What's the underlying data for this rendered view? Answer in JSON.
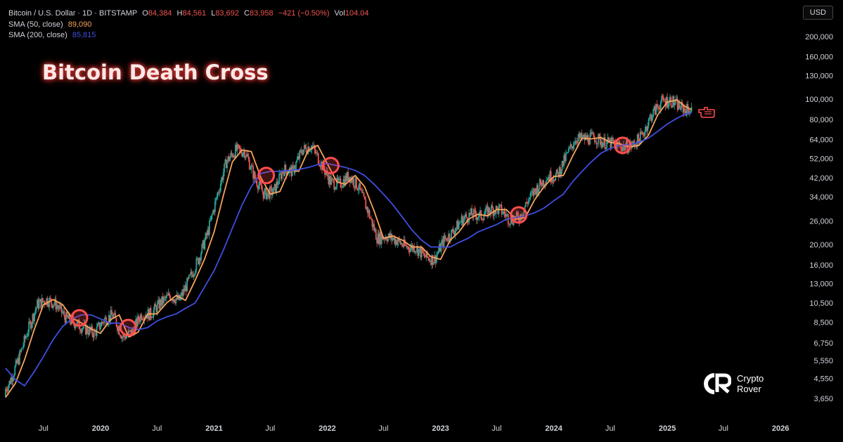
{
  "header": {
    "symbol": "Bitcoin / U.S. Dollar · 1D · BITSTAMP",
    "o_label": "O",
    "o_value": "84,384",
    "h_label": "H",
    "h_value": "84,561",
    "l_label": "L",
    "l_value": "83,692",
    "c_label": "C",
    "c_value": "83,958",
    "change": "−421 (−0.50%)",
    "vol_label": "Vol",
    "vol_value": "104.04",
    "sma50_label": "SMA (50, close)",
    "sma50_value": "89,090",
    "sma200_label": "SMA (200, close)",
    "sma200_value": "85,815"
  },
  "title": "Bitcoin Death Cross",
  "currency_button": "USD",
  "brand": {
    "line1": "Crypto",
    "line2": "Rover"
  },
  "colors": {
    "sma50": "#f7a35c",
    "sma200": "#3f4ee0",
    "candle_up": "#26a69a",
    "candle_down": "#ef5350",
    "circle": "#ff4d4d"
  },
  "chart_data": {
    "type": "line",
    "y_scale": "log",
    "ylim": [
      3300,
      230000
    ],
    "x_range": [
      "2019-03-01",
      "2026-02-15"
    ],
    "y_ticks": [
      3650,
      4550,
      5550,
      6750,
      8500,
      10500,
      13000,
      16000,
      20000,
      26000,
      34000,
      42000,
      52000,
      64000,
      80000,
      100000,
      130000,
      160000,
      200000
    ],
    "y_tick_labels": [
      "3,650",
      "4,550",
      "5,550",
      "6,750",
      "8,500",
      "10,500",
      "13,000",
      "16,000",
      "20,000",
      "26,000",
      "34,000",
      "42,000",
      "52,000",
      "64,000",
      "80,000",
      "100,000",
      "130,000",
      "160,000",
      "200,000"
    ],
    "x_ticks": [
      {
        "label": "Jul",
        "date": "2019-07-01"
      },
      {
        "label": "2020",
        "date": "2020-01-01"
      },
      {
        "label": "Jul",
        "date": "2020-07-01"
      },
      {
        "label": "2021",
        "date": "2021-01-01"
      },
      {
        "label": "Jul",
        "date": "2021-07-01"
      },
      {
        "label": "2022",
        "date": "2022-01-01"
      },
      {
        "label": "Jul",
        "date": "2022-07-01"
      },
      {
        "label": "2023",
        "date": "2023-01-01"
      },
      {
        "label": "Jul",
        "date": "2023-07-01"
      },
      {
        "label": "2024",
        "date": "2024-01-01"
      },
      {
        "label": "Jul",
        "date": "2024-07-01"
      },
      {
        "label": "2025",
        "date": "2025-01-01"
      },
      {
        "label": "Jul",
        "date": "2025-07-01"
      },
      {
        "label": "2026",
        "date": "2026-01-01"
      }
    ],
    "series": [
      {
        "name": "SMA (50, close)",
        "points": [
          [
            "2019-03-01",
            3700
          ],
          [
            "2019-04-01",
            4300
          ],
          [
            "2019-05-01",
            5600
          ],
          [
            "2019-06-01",
            7800
          ],
          [
            "2019-07-01",
            10300
          ],
          [
            "2019-08-01",
            10900
          ],
          [
            "2019-09-01",
            10300
          ],
          [
            "2019-10-01",
            8900
          ],
          [
            "2019-11-01",
            8400
          ],
          [
            "2019-12-01",
            7900
          ],
          [
            "2020-01-01",
            7500
          ],
          [
            "2020-02-01",
            8700
          ],
          [
            "2020-03-01",
            9200
          ],
          [
            "2020-04-01",
            7200
          ],
          [
            "2020-05-01",
            7600
          ],
          [
            "2020-06-01",
            9300
          ],
          [
            "2020-07-01",
            9300
          ],
          [
            "2020-08-01",
            10500
          ],
          [
            "2020-09-01",
            11400
          ],
          [
            "2020-10-01",
            10800
          ],
          [
            "2020-11-01",
            13500
          ],
          [
            "2020-12-01",
            17000
          ],
          [
            "2021-01-01",
            23000
          ],
          [
            "2021-02-01",
            35000
          ],
          [
            "2021-03-01",
            50000
          ],
          [
            "2021-04-01",
            57000
          ],
          [
            "2021-05-01",
            56000
          ],
          [
            "2021-06-01",
            42000
          ],
          [
            "2021-07-01",
            35000
          ],
          [
            "2021-08-01",
            36000
          ],
          [
            "2021-09-01",
            46000
          ],
          [
            "2021-10-01",
            45000
          ],
          [
            "2021-11-01",
            57000
          ],
          [
            "2021-12-01",
            60000
          ],
          [
            "2022-01-01",
            49000
          ],
          [
            "2022-02-01",
            40000
          ],
          [
            "2022-03-01",
            39000
          ],
          [
            "2022-04-01",
            43000
          ],
          [
            "2022-05-01",
            38000
          ],
          [
            "2022-06-01",
            29000
          ],
          [
            "2022-07-01",
            21500
          ],
          [
            "2022-08-01",
            22000
          ],
          [
            "2022-09-01",
            21000
          ],
          [
            "2022-10-01",
            19500
          ],
          [
            "2022-11-01",
            19500
          ],
          [
            "2022-12-01",
            17500
          ],
          [
            "2023-01-01",
            17000
          ],
          [
            "2023-02-01",
            21000
          ],
          [
            "2023-03-01",
            23000
          ],
          [
            "2023-04-01",
            26500
          ],
          [
            "2023-05-01",
            28000
          ],
          [
            "2023-06-01",
            27500
          ],
          [
            "2023-07-01",
            29500
          ],
          [
            "2023-08-01",
            29500
          ],
          [
            "2023-09-01",
            26500
          ],
          [
            "2023-10-01",
            27000
          ],
          [
            "2023-11-01",
            33000
          ],
          [
            "2023-12-01",
            38000
          ],
          [
            "2024-01-01",
            42500
          ],
          [
            "2024-02-01",
            43000
          ],
          [
            "2024-03-01",
            53000
          ],
          [
            "2024-04-01",
            65000
          ],
          [
            "2024-05-01",
            64500
          ],
          [
            "2024-06-01",
            65500
          ],
          [
            "2024-07-01",
            62000
          ],
          [
            "2024-08-01",
            61000
          ],
          [
            "2024-09-01",
            59000
          ],
          [
            "2024-10-01",
            60000
          ],
          [
            "2024-11-01",
            67000
          ],
          [
            "2024-12-01",
            84000
          ],
          [
            "2025-01-01",
            97000
          ],
          [
            "2025-02-01",
            99000
          ],
          [
            "2025-03-01",
            92000
          ],
          [
            "2025-03-20",
            89090
          ]
        ]
      },
      {
        "name": "SMA (200, close)",
        "points": [
          [
            "2019-03-01",
            5100
          ],
          [
            "2019-04-01",
            4500
          ],
          [
            "2019-05-01",
            4200
          ],
          [
            "2019-06-01",
            4900
          ],
          [
            "2019-07-01",
            5800
          ],
          [
            "2019-08-01",
            7000
          ],
          [
            "2019-09-01",
            8100
          ],
          [
            "2019-10-01",
            8800
          ],
          [
            "2019-11-01",
            9200
          ],
          [
            "2019-12-01",
            9200
          ],
          [
            "2020-01-01",
            8800
          ],
          [
            "2020-02-01",
            8400
          ],
          [
            "2020-03-01",
            8400
          ],
          [
            "2020-04-01",
            8000
          ],
          [
            "2020-05-01",
            7800
          ],
          [
            "2020-06-01",
            8000
          ],
          [
            "2020-07-01",
            8600
          ],
          [
            "2020-08-01",
            9000
          ],
          [
            "2020-09-01",
            9300
          ],
          [
            "2020-10-01",
            9900
          ],
          [
            "2020-11-01",
            10500
          ],
          [
            "2020-12-01",
            12500
          ],
          [
            "2021-01-01",
            15000
          ],
          [
            "2021-02-01",
            19000
          ],
          [
            "2021-03-01",
            24000
          ],
          [
            "2021-04-01",
            31000
          ],
          [
            "2021-05-01",
            38000
          ],
          [
            "2021-06-01",
            44000
          ],
          [
            "2021-07-01",
            45000
          ],
          [
            "2021-08-01",
            45000
          ],
          [
            "2021-09-01",
            45500
          ],
          [
            "2021-10-01",
            46000
          ],
          [
            "2021-11-01",
            47000
          ],
          [
            "2021-12-01",
            48500
          ],
          [
            "2022-01-01",
            49000
          ],
          [
            "2022-02-01",
            48000
          ],
          [
            "2022-03-01",
            47000
          ],
          [
            "2022-04-01",
            45500
          ],
          [
            "2022-05-01",
            43000
          ],
          [
            "2022-06-01",
            39000
          ],
          [
            "2022-07-01",
            35000
          ],
          [
            "2022-08-01",
            31000
          ],
          [
            "2022-09-01",
            27000
          ],
          [
            "2022-10-01",
            23500
          ],
          [
            "2022-11-01",
            21000
          ],
          [
            "2022-12-01",
            19500
          ],
          [
            "2023-01-01",
            19500
          ],
          [
            "2023-02-01",
            19500
          ],
          [
            "2023-03-01",
            20500
          ],
          [
            "2023-04-01",
            21500
          ],
          [
            "2023-05-01",
            23000
          ],
          [
            "2023-06-01",
            24000
          ],
          [
            "2023-07-01",
            25000
          ],
          [
            "2023-08-01",
            26500
          ],
          [
            "2023-09-01",
            27000
          ],
          [
            "2023-10-01",
            27500
          ],
          [
            "2023-11-01",
            28500
          ],
          [
            "2023-12-01",
            30000
          ],
          [
            "2024-01-01",
            32500
          ],
          [
            "2024-02-01",
            35000
          ],
          [
            "2024-03-01",
            40000
          ],
          [
            "2024-04-01",
            45000
          ],
          [
            "2024-05-01",
            50000
          ],
          [
            "2024-06-01",
            55000
          ],
          [
            "2024-07-01",
            58000
          ],
          [
            "2024-08-01",
            60000
          ],
          [
            "2024-09-01",
            60500
          ],
          [
            "2024-10-01",
            62000
          ],
          [
            "2024-11-01",
            65000
          ],
          [
            "2024-12-01",
            70000
          ],
          [
            "2025-01-01",
            76000
          ],
          [
            "2025-02-01",
            81000
          ],
          [
            "2025-03-01",
            85000
          ],
          [
            "2025-03-20",
            85815
          ]
        ]
      }
    ],
    "crosses": [
      {
        "date": "2019-10-25",
        "value": 8900
      },
      {
        "date": "2020-03-30",
        "value": 8000
      },
      {
        "date": "2021-06-18",
        "value": 43000
      },
      {
        "date": "2022-01-12",
        "value": 48000
      },
      {
        "date": "2023-09-10",
        "value": 27800
      },
      {
        "date": "2024-08-10",
        "value": 60000
      }
    ]
  }
}
